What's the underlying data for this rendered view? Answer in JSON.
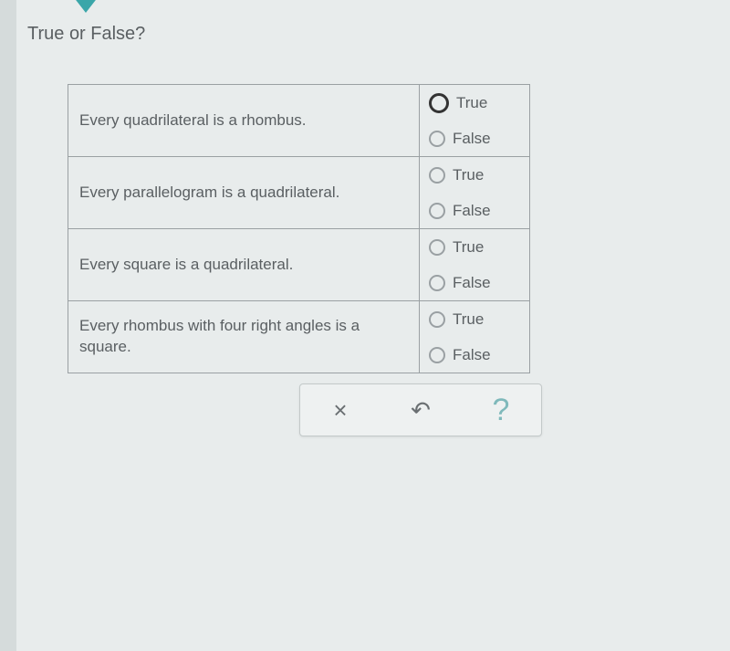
{
  "prompt": "True or False?",
  "options": {
    "true_label": "True",
    "false_label": "False"
  },
  "questions": [
    {
      "statement": "Every quadrilateral is a rhombus.",
      "selected": "true"
    },
    {
      "statement": "Every parallelogram is a quadrilateral.",
      "selected": null
    },
    {
      "statement": "Every square is a quadrilateral.",
      "selected": null
    },
    {
      "statement": "Every rhombus with four right angles is a square.",
      "selected": null
    }
  ],
  "toolbar": {
    "clear_icon": "×",
    "reset_icon": "↶",
    "help_icon": "?"
  },
  "colors": {
    "background": "#e8ecec",
    "border": "#9aa0a3",
    "text": "#5a5f62",
    "accent": "#3aa6a9",
    "help_color": "#7fb9bb"
  }
}
